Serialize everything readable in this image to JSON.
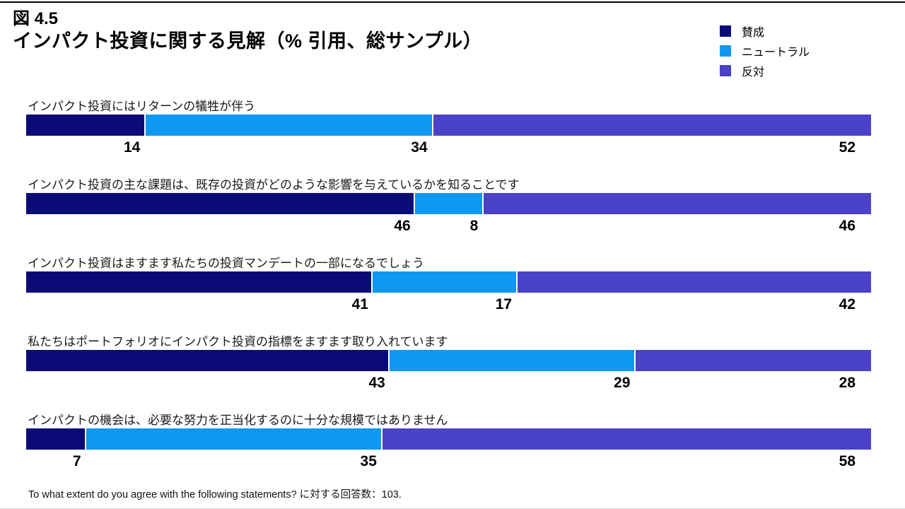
{
  "header": {
    "figure_number": "図 4.5",
    "title": "インパクト投資に関する見解（% 引用、総サンプル）"
  },
  "legend": [
    {
      "label": "賛成",
      "color": "#0B0B78"
    },
    {
      "label": "ニュートラル",
      "color": "#0E98F0"
    },
    {
      "label": "反対",
      "color": "#4A42C8"
    }
  ],
  "chart_data": {
    "type": "bar",
    "orientation": "horizontal",
    "stacked": true,
    "unit": "%",
    "xlim": [
      0,
      100
    ],
    "value_labels": true,
    "categories": [
      "インパクト投資にはリターンの犠牲が伴う",
      "インパクト投資の主な課題は、既存の投資がどのような影響を与えているかを知ることです",
      "インパクト投資はますます私たちの投資マンデートの一部になるでしょう",
      "私たちはポートフォリオにインパクト投資の指標をますます取り入れています",
      "インパクトの機会は、必要な努力を正当化するのに十分な規模ではありません"
    ],
    "series": [
      {
        "name": "賛成",
        "color": "#0B0B78",
        "values": [
          14,
          46,
          41,
          43,
          7
        ]
      },
      {
        "name": "ニュートラル",
        "color": "#0E98F0",
        "values": [
          34,
          8,
          17,
          29,
          35
        ]
      },
      {
        "name": "反対",
        "color": "#4A42C8",
        "values": [
          52,
          46,
          42,
          28,
          58
        ]
      }
    ]
  },
  "footer": {
    "note": "To what extent do you agree with the following statements? に対する回答数：103."
  }
}
